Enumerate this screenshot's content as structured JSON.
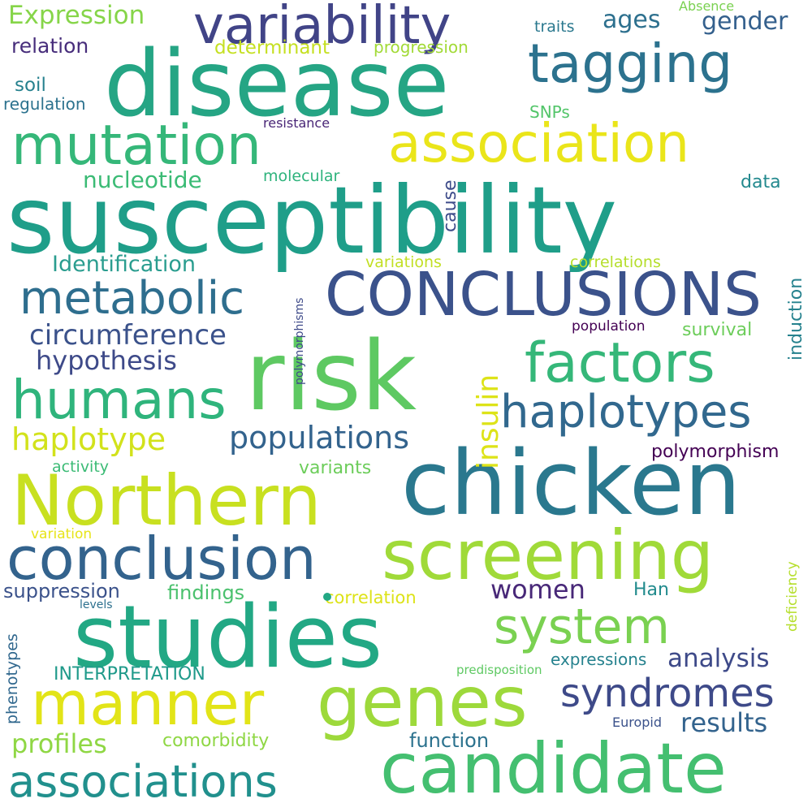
{
  "words": [
    {
      "text": "susceptibility",
      "color": "#1f9e89"
    },
    {
      "text": "disease",
      "color": "#25a584"
    },
    {
      "text": "risk",
      "color": "#5ec962"
    },
    {
      "text": "chicken",
      "color": "#2a788e"
    },
    {
      "text": "studies",
      "color": "#22a884"
    },
    {
      "text": "Northern",
      "color": "#c8e020"
    },
    {
      "text": "CONCLUSIONS",
      "color": "#3b528b"
    },
    {
      "text": "screening",
      "color": "#a0da39"
    },
    {
      "text": "genes",
      "color": "#9dd93b"
    },
    {
      "text": "candidate",
      "color": "#44bf70"
    },
    {
      "text": "conclusion",
      "color": "#33638d"
    },
    {
      "text": "manner",
      "color": "#e2e418"
    },
    {
      "text": "variability",
      "color": "#414487"
    },
    {
      "text": "tagging",
      "color": "#2c728e"
    },
    {
      "text": "association",
      "color": "#eae51a"
    },
    {
      "text": "mutation",
      "color": "#35b779"
    },
    {
      "text": "humans",
      "color": "#2fb47c"
    },
    {
      "text": "factors",
      "color": "#35b779"
    },
    {
      "text": "metabolic",
      "color": "#2e6e8e"
    },
    {
      "text": "haplotypes",
      "color": "#31688e"
    },
    {
      "text": "system",
      "color": "#7ad151"
    },
    {
      "text": "syndromes",
      "color": "#3e4a89"
    },
    {
      "text": "associations",
      "color": "#21908d"
    },
    {
      "text": "populations",
      "color": "#33638d"
    },
    {
      "text": "haplotype",
      "color": "#d2e21b"
    },
    {
      "text": "circumference",
      "color": "#3b528b"
    },
    {
      "text": "hypothesis",
      "color": "#3e4a89"
    },
    {
      "text": "insulin",
      "color": "#dde318"
    },
    {
      "text": "nucleotide",
      "color": "#3bbb75"
    },
    {
      "text": "Identification",
      "color": "#2a9d8f"
    },
    {
      "text": "Expression",
      "color": "#86d549"
    },
    {
      "text": "ages",
      "color": "#2d708e"
    },
    {
      "text": "gender",
      "color": "#34608d"
    },
    {
      "text": "determinant",
      "color": "#c5e021"
    },
    {
      "text": "relation",
      "color": "#472d7b"
    },
    {
      "text": "progression",
      "color": "#a2da37"
    },
    {
      "text": "traits",
      "color": "#2a788e"
    },
    {
      "text": "Absence",
      "color": "#7ad151"
    },
    {
      "text": "soil",
      "color": "#26818e"
    },
    {
      "text": "regulation",
      "color": "#2c728e"
    },
    {
      "text": "SNPs",
      "color": "#52c569"
    },
    {
      "text": "resistance",
      "color": "#482576"
    },
    {
      "text": "molecular",
      "color": "#2eb37c"
    },
    {
      "text": "data",
      "color": "#23898e"
    },
    {
      "text": "cause",
      "color": "#3e4c8a"
    },
    {
      "text": "variations",
      "color": "#c2df23"
    },
    {
      "text": "correlations",
      "color": "#b5de2b"
    },
    {
      "text": "induction",
      "color": "#26828e"
    },
    {
      "text": "polymorphisms",
      "color": "#3e4a89"
    },
    {
      "text": "population",
      "color": "#440154"
    },
    {
      "text": "survival",
      "color": "#6ccd5a"
    },
    {
      "text": "polymorphism",
      "color": "#440154"
    },
    {
      "text": "activity",
      "color": "#3bbb75"
    },
    {
      "text": "variants",
      "color": "#6ccd5a"
    },
    {
      "text": "variation",
      "color": "#e7e419"
    },
    {
      "text": "deficiency",
      "color": "#b5de2b"
    },
    {
      "text": "women",
      "color": "#482878"
    },
    {
      "text": "Han",
      "color": "#228b8d"
    },
    {
      "text": "correlation",
      "color": "#dde318"
    },
    {
      "text": "suppression",
      "color": "#3b528b"
    },
    {
      "text": "findings",
      "color": "#4ac16d"
    },
    {
      "text": "levels",
      "color": "#2d708e"
    },
    {
      "text": "phenotypes",
      "color": "#31688e"
    },
    {
      "text": "analysis",
      "color": "#3e4a89"
    },
    {
      "text": "expressions",
      "color": "#26828e"
    },
    {
      "text": "predisposition",
      "color": "#5ec962"
    },
    {
      "text": "INTERPRETATION",
      "color": "#1f9a8a"
    },
    {
      "text": "results",
      "color": "#33638d"
    },
    {
      "text": "Europid",
      "color": "#3b528b"
    },
    {
      "text": "profiles",
      "color": "#8fd744"
    },
    {
      "text": "comorbidity",
      "color": "#8fd744"
    },
    {
      "text": "function",
      "color": "#2c728e"
    }
  ]
}
